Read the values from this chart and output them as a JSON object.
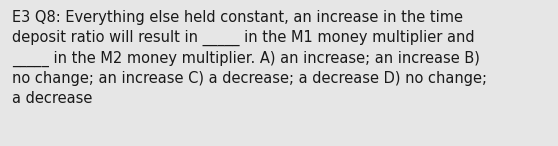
{
  "text": "E3 Q8: Everything else held constant, an increase in the time\ndeposit ratio will result in _____ in the M1 money multiplier and\n_____ in the M2 money multiplier. A) an increase; an increase B)\nno change; an increase C) a decrease; a decrease D) no change;\na decrease",
  "background_color": "#e6e6e6",
  "text_color": "#1a1a1a",
  "font_size": 10.5,
  "font_family": "DejaVu Sans",
  "fig_width": 5.58,
  "fig_height": 1.46
}
